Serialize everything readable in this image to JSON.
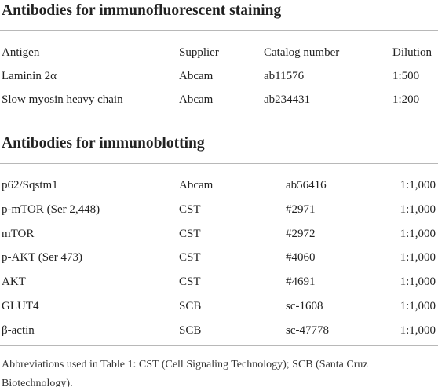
{
  "sections": [
    {
      "title": "Antibodies for immunofluorescent staining",
      "header": [
        "Antigen",
        "Supplier",
        "Catalog number",
        "Dilution"
      ],
      "rows": [
        [
          "Laminin 2α",
          "Abcam",
          "ab11576",
          "1:500"
        ],
        [
          "Slow myosin heavy chain",
          "Abcam",
          "ab234431",
          "1:200"
        ]
      ]
    },
    {
      "title": "Antibodies for immunoblotting",
      "rows": [
        [
          "p62/Sqstm1",
          "Abcam",
          "ab56416",
          "1:1,000"
        ],
        [
          "p-mTOR (Ser 2,448)",
          "CST",
          "#2971",
          "1:1,000"
        ],
        [
          "mTOR",
          "CST",
          "#2972",
          "1:1,000"
        ],
        [
          "p-AKT (Ser 473)",
          "CST",
          "#4060",
          "1:1,000"
        ],
        [
          "AKT",
          "CST",
          "#4691",
          "1:1,000"
        ],
        [
          "GLUT4",
          "SCB",
          "sc-1608",
          "1:1,000"
        ],
        [
          "β-actin",
          "SCB",
          "sc-47778",
          "1:1,000"
        ]
      ]
    }
  ],
  "footnote": "Abbreviations used in Table 1: CST (Cell Signaling Technology); SCB (Santa Cruz Biotechnology)."
}
